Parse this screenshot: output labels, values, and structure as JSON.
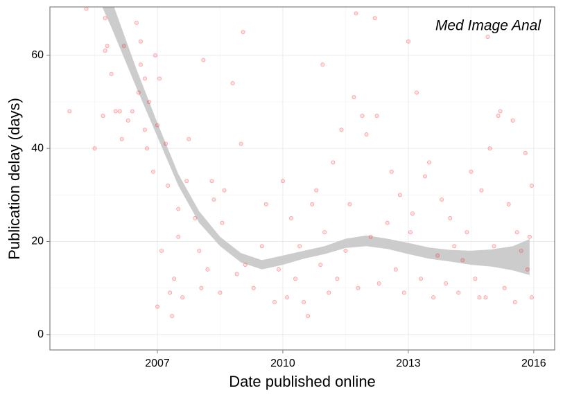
{
  "chart_data": {
    "type": "scatter",
    "annotation": "Med Image Anal",
    "xlabel": "Date published online",
    "ylabel": "Publication delay (days)",
    "xlim": [
      2004.43,
      2016.5
    ],
    "ylim": [
      -3.3,
      70.4
    ],
    "xticks": [
      2007,
      2010,
      2013,
      2016
    ],
    "yticks": [
      0,
      20,
      40,
      60
    ],
    "xminor": [
      2005.5,
      2008.5,
      2011.5,
      2014.5
    ],
    "yminor": [
      10,
      30,
      50
    ],
    "grid": true,
    "color": "#ff0000",
    "band": {
      "color": "#cccccc",
      "x": [
        2005.4,
        2005.9,
        2006.5,
        2007.0,
        2007.5,
        2008.0,
        2008.5,
        2009.0,
        2009.5,
        2010.0,
        2010.5,
        2011.0,
        2011.5,
        2012.0,
        2012.5,
        2013.0,
        2013.5,
        2014.0,
        2014.5,
        2015.0,
        2015.5,
        2015.9
      ],
      "lower": [
        76,
        66,
        53,
        42.5,
        32,
        24,
        19,
        15.5,
        14,
        15,
        16.3,
        17.3,
        18.6,
        19,
        18.4,
        17.3,
        16.3,
        15.7,
        15,
        14.6,
        13.8,
        12.8
      ],
      "upper": [
        82,
        72,
        57,
        45.5,
        34.5,
        26.5,
        21,
        17.5,
        16,
        17,
        18,
        19,
        20.6,
        21.3,
        20.6,
        19.7,
        18.7,
        18.2,
        18,
        18.3,
        19,
        20.5
      ]
    },
    "points": {
      "x": [
        2004.9,
        2005.3,
        2005.5,
        2005.7,
        2005.75,
        2005.8,
        2005.75,
        2005.9,
        2006.0,
        2006.1,
        2006.15,
        2006.2,
        2006.3,
        2006.4,
        2006.5,
        2006.55,
        2006.6,
        2006.6,
        2006.7,
        2006.7,
        2006.75,
        2006.8,
        2006.9,
        2006.95,
        2007.0,
        2007.0,
        2007.05,
        2007.1,
        2007.2,
        2007.25,
        2007.3,
        2007.35,
        2007.4,
        2007.5,
        2007.5,
        2007.6,
        2007.7,
        2007.75,
        2007.9,
        2008.0,
        2008.05,
        2008.1,
        2008.2,
        2008.3,
        2008.35,
        2008.5,
        2008.55,
        2008.6,
        2008.8,
        2008.9,
        2009.0,
        2009.05,
        2009.1,
        2009.3,
        2009.5,
        2009.6,
        2009.8,
        2009.9,
        2010.0,
        2010.1,
        2010.2,
        2010.3,
        2010.4,
        2010.5,
        2010.6,
        2010.7,
        2010.8,
        2010.9,
        2010.95,
        2011.0,
        2011.1,
        2011.2,
        2011.3,
        2011.4,
        2011.5,
        2011.6,
        2011.7,
        2011.75,
        2011.8,
        2011.9,
        2012.0,
        2012.1,
        2012.2,
        2012.25,
        2012.3,
        2012.5,
        2012.6,
        2012.7,
        2012.8,
        2012.9,
        2013.0,
        2013.05,
        2013.1,
        2013.2,
        2013.3,
        2013.4,
        2013.5,
        2013.6,
        2013.7,
        2013.8,
        2013.9,
        2014.0,
        2014.1,
        2014.2,
        2014.3,
        2014.4,
        2014.5,
        2014.6,
        2014.7,
        2014.75,
        2014.85,
        2014.9,
        2014.95,
        2015.05,
        2015.15,
        2015.2,
        2015.3,
        2015.4,
        2015.5,
        2015.55,
        2015.6,
        2015.7,
        2015.8,
        2015.85,
        2015.9,
        2015.95,
        2015.95
      ],
      "y": [
        48,
        70,
        40,
        47,
        61,
        62,
        68,
        56,
        48,
        48,
        42,
        62,
        46,
        48,
        67,
        52,
        63,
        58,
        55,
        44,
        40,
        50,
        35,
        60,
        45,
        6,
        55,
        18,
        41,
        32,
        9,
        4,
        12,
        27,
        21,
        8,
        33,
        42,
        25,
        18,
        10,
        59,
        14,
        33,
        29,
        9,
        24,
        31,
        54,
        13,
        41,
        65,
        15,
        10,
        19,
        28,
        7,
        14,
        33,
        8,
        25,
        12,
        19,
        7,
        4,
        28,
        31,
        15,
        58,
        22,
        9,
        37,
        12,
        44,
        18,
        28,
        51,
        69,
        10,
        47,
        43,
        21,
        68,
        47,
        11,
        24,
        35,
        14,
        30,
        9,
        63,
        22,
        26,
        52,
        12,
        34,
        37,
        8,
        17,
        29,
        11,
        25,
        19,
        9,
        16,
        22,
        35,
        12,
        8,
        31,
        8,
        64,
        40,
        19,
        47,
        48,
        10,
        28,
        46,
        7,
        22,
        18,
        39,
        14,
        21,
        32,
        8
      ]
    }
  }
}
